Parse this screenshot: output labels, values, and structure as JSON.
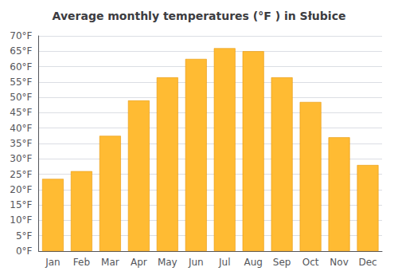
{
  "chart_data": {
    "type": "bar",
    "title": "Average monthly temperatures (°F ) in Słubice",
    "categories": [
      "Jan",
      "Feb",
      "Mar",
      "Apr",
      "May",
      "Jun",
      "Jul",
      "Aug",
      "Sep",
      "Oct",
      "Nov",
      "Dec"
    ],
    "values": [
      23.5,
      26.0,
      37.5,
      49.0,
      56.5,
      62.5,
      66.0,
      65.0,
      56.5,
      48.5,
      37.0,
      28.0
    ],
    "color": "#FFBB33",
    "ylim": [
      0,
      70
    ],
    "yticks": [
      {
        "value": 0,
        "label": "0°F"
      },
      {
        "value": 5,
        "label": "5°F"
      },
      {
        "value": 10,
        "label": "10°F"
      },
      {
        "value": 15,
        "label": "15°F"
      },
      {
        "value": 20,
        "label": "20°F"
      },
      {
        "value": 25,
        "label": "25°F"
      },
      {
        "value": 30,
        "label": "30°F"
      },
      {
        "value": 35,
        "label": "35°F"
      },
      {
        "value": 40,
        "label": "40°F"
      },
      {
        "value": 45,
        "label": "45°F"
      },
      {
        "value": 50,
        "label": "50°F"
      },
      {
        "value": 55,
        "label": "55°F"
      },
      {
        "value": 60,
        "label": "60°F"
      },
      {
        "value": 65,
        "label": "65°F"
      },
      {
        "value": 70,
        "label": "70°F"
      }
    ],
    "grid": true
  }
}
